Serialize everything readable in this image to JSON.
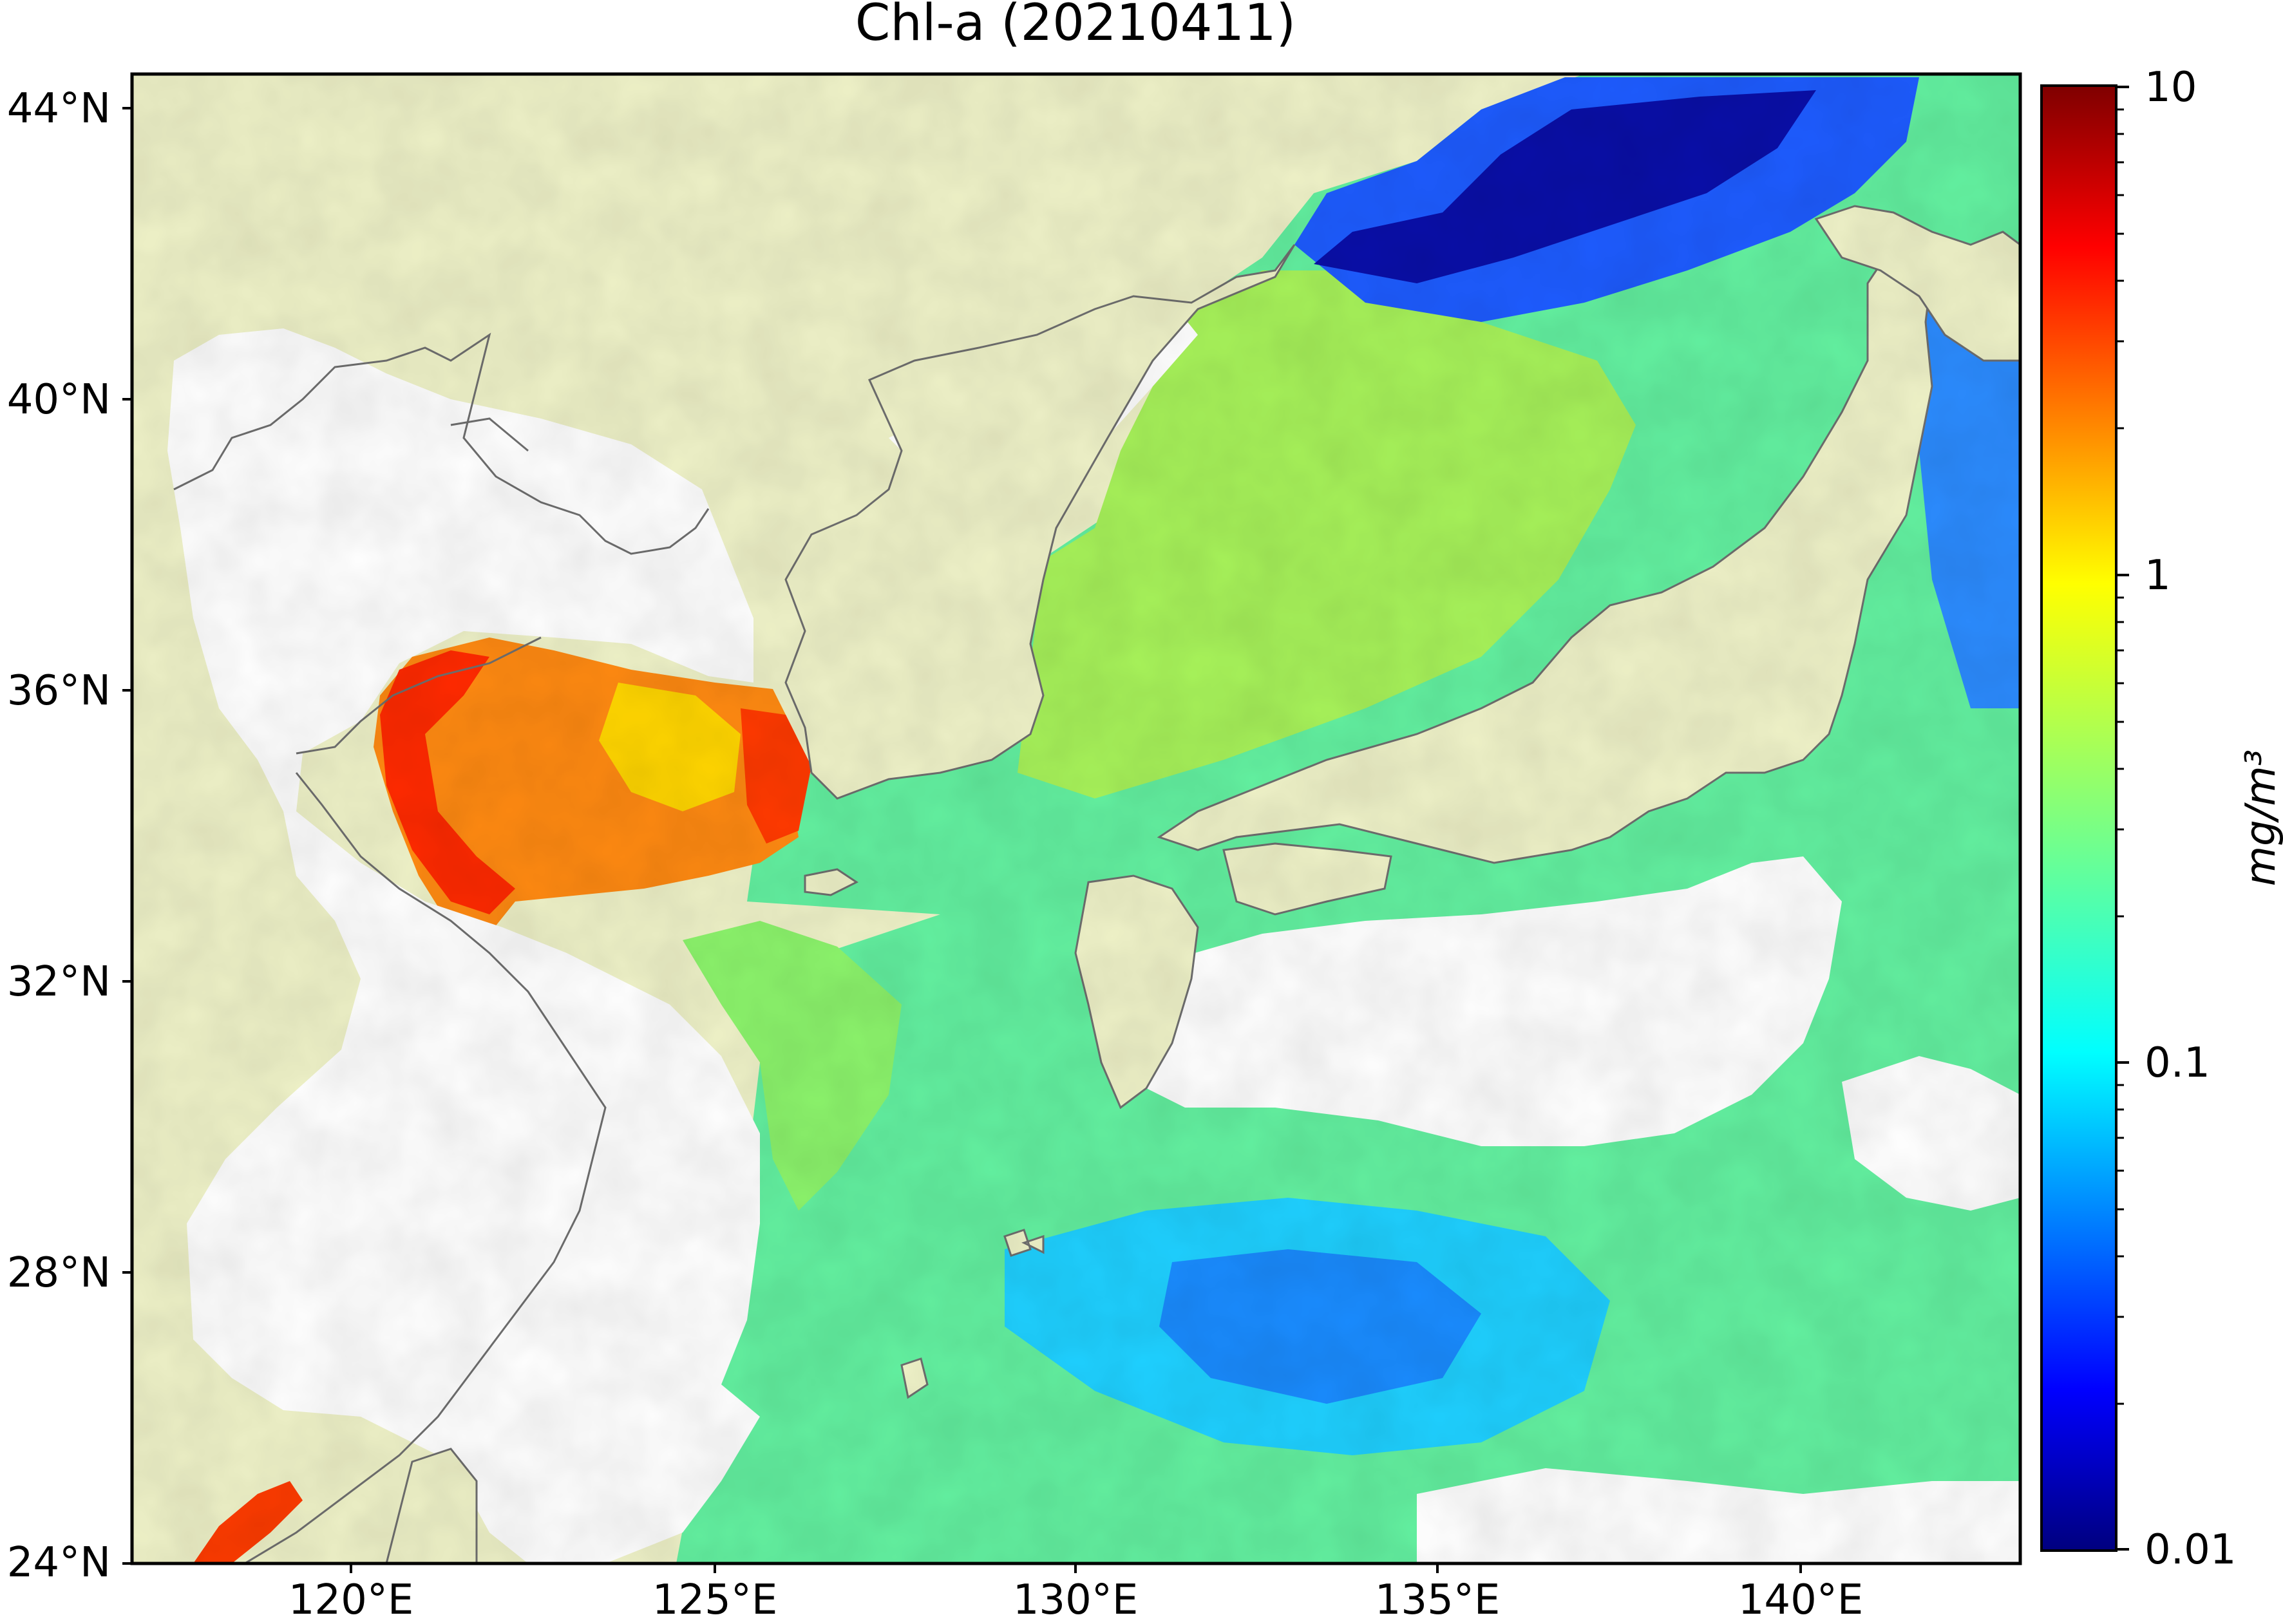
{
  "figure": {
    "title": "Chl-a (20210411)"
  },
  "map": {
    "lat_labels": [
      "44°N",
      "40°N",
      "36°N",
      "32°N",
      "28°N",
      "24°N"
    ],
    "lon_labels": [
      "120°E",
      "125°E",
      "130°E",
      "135°E",
      "140°E"
    ],
    "extent": {
      "lon_min": 117,
      "lon_max": 143,
      "lat_min": 24,
      "lat_max": 44.5
    },
    "land_color": "#eff2c8",
    "cloud_color": "#ffffff",
    "coastline_color": "#6f6f6f"
  },
  "colorbar": {
    "unit_label": "mg/m³",
    "tick_labels": [
      "10",
      "1",
      "0.1",
      "0.01"
    ],
    "scale": "log",
    "range": [
      0.01,
      10
    ],
    "colormap": "jet",
    "colors": [
      "#00007f",
      "#0000ff",
      "#007fff",
      "#00ffff",
      "#7fff7f",
      "#ffff00",
      "#ff7f00",
      "#ff0000",
      "#7f0000"
    ]
  }
}
